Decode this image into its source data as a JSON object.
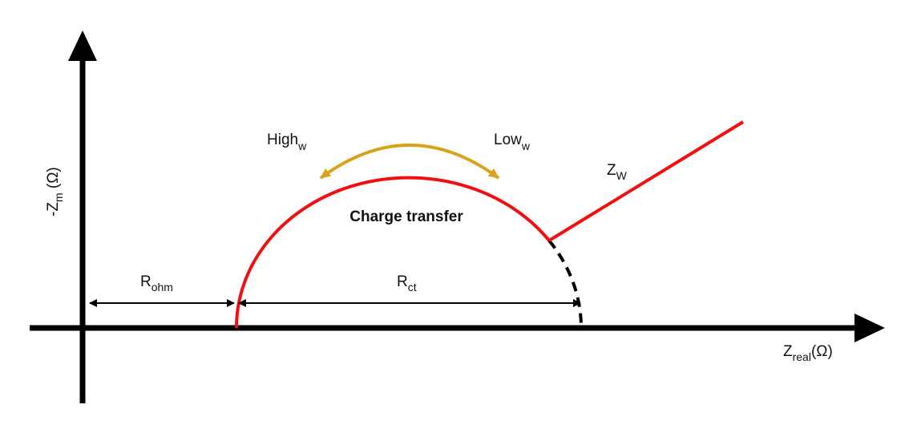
{
  "axes": {
    "x_label": {
      "main": "Z",
      "sub": "real",
      "suffix": "(Ω)"
    },
    "y_label": {
      "main": "-Z",
      "sub": "m",
      "suffix": " (Ω)"
    }
  },
  "annotations": {
    "high": {
      "main": "High",
      "sub": "w"
    },
    "low": {
      "main": "Low",
      "sub": "w"
    },
    "warburg": {
      "main": "Z",
      "sub": "W"
    },
    "charge_transfer": "Charge transfer",
    "r_ohm": {
      "main": "R",
      "sub": "ohm"
    },
    "r_ct": {
      "main": "R",
      "sub": "ct"
    }
  }
}
